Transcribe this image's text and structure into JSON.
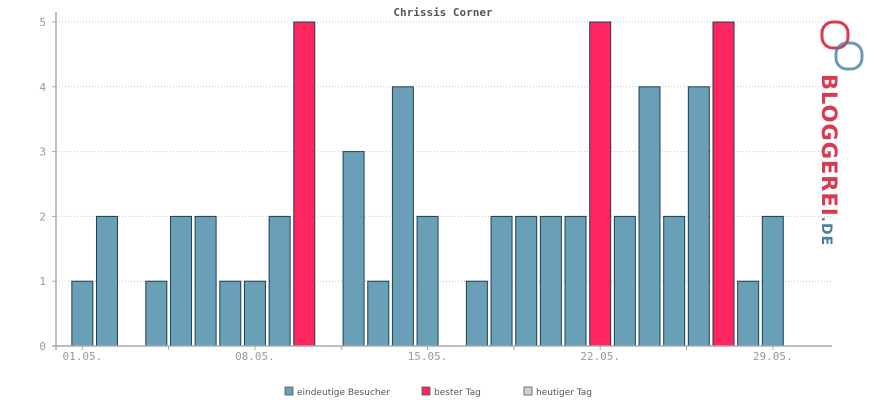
{
  "chart_data": {
    "type": "bar",
    "title": "Chrissis Corner",
    "xlabel": "",
    "ylabel": "",
    "ylim": [
      0,
      5
    ],
    "y_ticks": [
      "0",
      "1",
      "2",
      "3",
      "4",
      "5"
    ],
    "x_tick_labels": [
      {
        "day": 1,
        "label": "01.05."
      },
      {
        "day": 8,
        "label": "08.05."
      },
      {
        "day": 15,
        "label": "15.05."
      },
      {
        "day": 22,
        "label": "22.05."
      },
      {
        "day": 29,
        "label": "29.05."
      }
    ],
    "days": [
      1,
      2,
      3,
      4,
      5,
      6,
      7,
      8,
      9,
      10,
      11,
      12,
      13,
      14,
      15,
      16,
      17,
      18,
      19,
      20,
      21,
      22,
      23,
      24,
      25,
      26,
      27,
      28,
      29,
      30
    ],
    "values": [
      1,
      2,
      0,
      1,
      2,
      2,
      1,
      1,
      2,
      5,
      0,
      3,
      1,
      4,
      2,
      0,
      1,
      2,
      2,
      2,
      2,
      5,
      2,
      4,
      2,
      4,
      5,
      1,
      2,
      0
    ],
    "best_days": [
      10,
      22,
      27
    ],
    "grid": true,
    "legend_position": "bottom",
    "legend": [
      {
        "label": "eindeutige Besucher",
        "color": "#6a9fb8"
      },
      {
        "label": "bester Tag",
        "color": "#ff2560"
      },
      {
        "label": "heutiger Tag",
        "color": "#d0d0d0"
      }
    ],
    "colors": {
      "bar": "#6a9fb8",
      "best": "#ff2560",
      "today": "#d0d0d0",
      "bar_stroke": "#1f3f50"
    }
  },
  "logo": {
    "text": "BLOGGEREI",
    "suffix": ".DE",
    "color_main": "#d93a4e",
    "color_suffix": "#4a7fa0"
  }
}
